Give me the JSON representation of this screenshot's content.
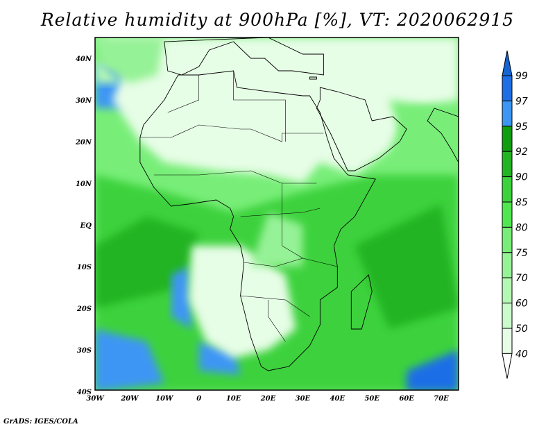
{
  "title": "Relative humidity at 900hPa [%], VT: 2020062915",
  "credit": "GrADS: IGES/COLA",
  "map": {
    "lon_range": [
      -30,
      75
    ],
    "lat_range": [
      -40,
      45
    ],
    "lon_ticks": [
      {
        "v": -30,
        "t": "30W"
      },
      {
        "v": -20,
        "t": "20W"
      },
      {
        "v": -10,
        "t": "10W"
      },
      {
        "v": 0,
        "t": "0"
      },
      {
        "v": 10,
        "t": "10E"
      },
      {
        "v": 20,
        "t": "20E"
      },
      {
        "v": 30,
        "t": "30E"
      },
      {
        "v": 40,
        "t": "40E"
      },
      {
        "v": 50,
        "t": "50E"
      },
      {
        "v": 60,
        "t": "60E"
      },
      {
        "v": 70,
        "t": "70E"
      }
    ],
    "lat_ticks": [
      {
        "v": 40,
        "t": "40N"
      },
      {
        "v": 30,
        "t": "30N"
      },
      {
        "v": 20,
        "t": "20N"
      },
      {
        "v": 10,
        "t": "10N"
      },
      {
        "v": 0,
        "t": "EQ"
      },
      {
        "v": -10,
        "t": "10S"
      },
      {
        "v": -20,
        "t": "20S"
      },
      {
        "v": -30,
        "t": "30S"
      },
      {
        "v": -40,
        "t": "40S"
      }
    ]
  },
  "colorbar": {
    "levels": [
      "40",
      "50",
      "60",
      "70",
      "75",
      "80",
      "85",
      "90",
      "92",
      "95",
      "97",
      "99"
    ],
    "colors": [
      "#e6fde6",
      "#cbfbcb",
      "#b4f8b4",
      "#96f296",
      "#78ee78",
      "#50e650",
      "#3cd23c",
      "#22b422",
      "#0e9e0e",
      "#3c96f4",
      "#1e6ee6",
      "#1464d2"
    ]
  }
}
